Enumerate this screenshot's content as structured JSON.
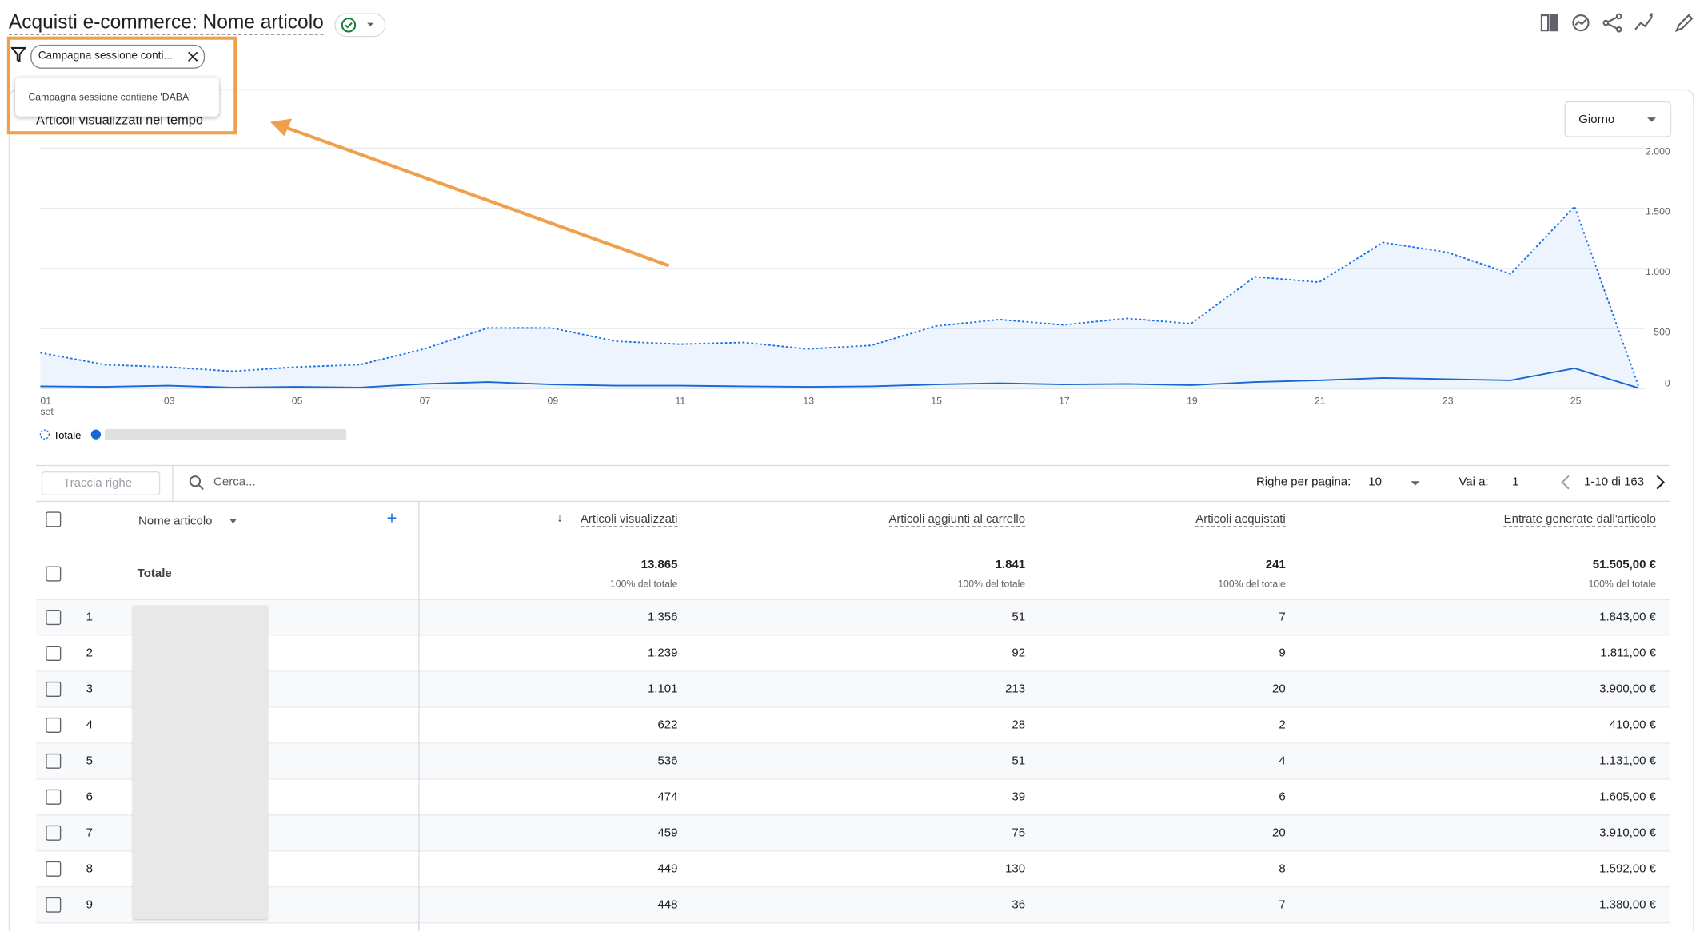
{
  "header": {
    "title": "Acquisti e-commerce: Nome articolo"
  },
  "filter": {
    "chip": "Campagna sessione conti...",
    "tooltip": "Campagna sessione contiene 'DABA'"
  },
  "chart_data": {
    "type": "line",
    "title": "Articoli visualizzati nel tempo",
    "granularity": "Giorno",
    "categories": [
      "01",
      null,
      "03",
      null,
      "05",
      null,
      "07",
      null,
      "09",
      null,
      "11",
      null,
      "13",
      null,
      "15",
      null,
      "17",
      null,
      "19",
      null,
      "21",
      null,
      "23",
      null,
      "25",
      null
    ],
    "month_label": "set",
    "ylim": [
      0,
      2000
    ],
    "yticks": [
      0,
      500,
      {
        "value": 1000,
        "label": "1.000"
      },
      {
        "value": 1500,
        "label": "1.500"
      },
      {
        "value": 2000,
        "label": "2.000"
      }
    ],
    "grid": true,
    "series": [
      {
        "name": "Totale",
        "color": "#1a73e8",
        "style": "dotted",
        "fill": true,
        "values": [
          300,
          200,
          180,
          145,
          180,
          200,
          330,
          505,
          505,
          395,
          370,
          385,
          330,
          360,
          520,
          575,
          530,
          585,
          540,
          930,
          885,
          1215,
          1135,
          955,
          1515,
          20
        ]
      },
      {
        "color": "#1967d2",
        "style": "solid",
        "fill": false,
        "values": [
          20,
          15,
          25,
          10,
          15,
          10,
          40,
          55,
          35,
          25,
          25,
          20,
          15,
          20,
          35,
          45,
          35,
          40,
          30,
          55,
          70,
          90,
          80,
          70,
          170,
          5
        ]
      }
    ]
  },
  "table": {
    "track_rows": "Traccia righe",
    "search": "Cerca...",
    "rows_per_page_label": "Righe per pagina:",
    "rows_per_page": "10",
    "goto_label": "Vai a:",
    "goto": "1",
    "range": "1-10 di 163",
    "dimension": "Nome articolo",
    "columns": [
      "Articoli visualizzati",
      "Articoli aggiunti al carrello",
      "Articoli acquistati",
      "Entrate generate dall'articolo"
    ],
    "totals_label": "Totale",
    "totals": [
      "13.865",
      "1.841",
      "241",
      "51.505,00 €"
    ],
    "totals_note": "100% del totale",
    "rows": [
      [
        "1",
        "1.356",
        "51",
        "7",
        "1.843,00 €"
      ],
      [
        "2",
        "1.239",
        "92",
        "9",
        "1.811,00 €"
      ],
      [
        "3",
        "1.101",
        "213",
        "20",
        "3.900,00 €"
      ],
      [
        "4",
        "622",
        "28",
        "2",
        "410,00 €"
      ],
      [
        "5",
        "536",
        "51",
        "4",
        "1.131,00 €"
      ],
      [
        "6",
        "474",
        "39",
        "6",
        "1.605,00 €"
      ],
      [
        "7",
        "459",
        "75",
        "20",
        "3.910,00 €"
      ],
      [
        "8",
        "449",
        "130",
        "8",
        "1.592,00 €"
      ],
      [
        "9",
        "448",
        "36",
        "7",
        "1.380,00 €"
      ]
    ]
  }
}
